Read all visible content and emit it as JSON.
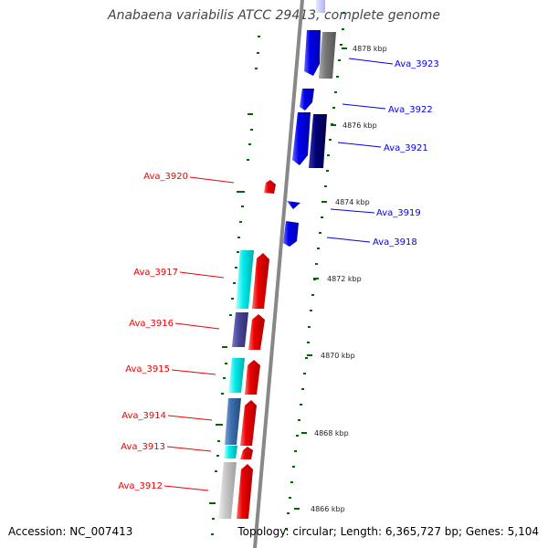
{
  "title": "Anabaena variabilis ATCC 29413, complete genome",
  "footer": {
    "accession": "Accession: NC_007413",
    "summary": "Topology: circular; Length: 6,365,727 bp; Genes: 5,104"
  },
  "scale_ticks": [
    {
      "label": "4878 kbp"
    },
    {
      "label": "4876 kbp"
    },
    {
      "label": "4874 kbp"
    },
    {
      "label": "4872 kbp"
    },
    {
      "label": "4870 kbp"
    },
    {
      "label": "4868 kbp"
    },
    {
      "label": "4866 kbp"
    }
  ],
  "gene_labels_right": [
    {
      "id": "Ava_3923"
    },
    {
      "id": "Ava_3922"
    },
    {
      "id": "Ava_3921"
    },
    {
      "id": "Ava_3919"
    },
    {
      "id": "Ava_3918"
    }
  ],
  "gene_labels_left": [
    {
      "id": "Ava_3920"
    },
    {
      "id": "Ava_3917"
    },
    {
      "id": "Ava_3916"
    },
    {
      "id": "Ava_3915"
    },
    {
      "id": "Ava_3914"
    },
    {
      "id": "Ava_3913"
    },
    {
      "id": "Ava_3912"
    }
  ],
  "colors": {
    "forward_strand": "#0000ee",
    "reverse_strand": "#ee0000",
    "backbone": "#888888",
    "gc_dashes": "#006600"
  }
}
